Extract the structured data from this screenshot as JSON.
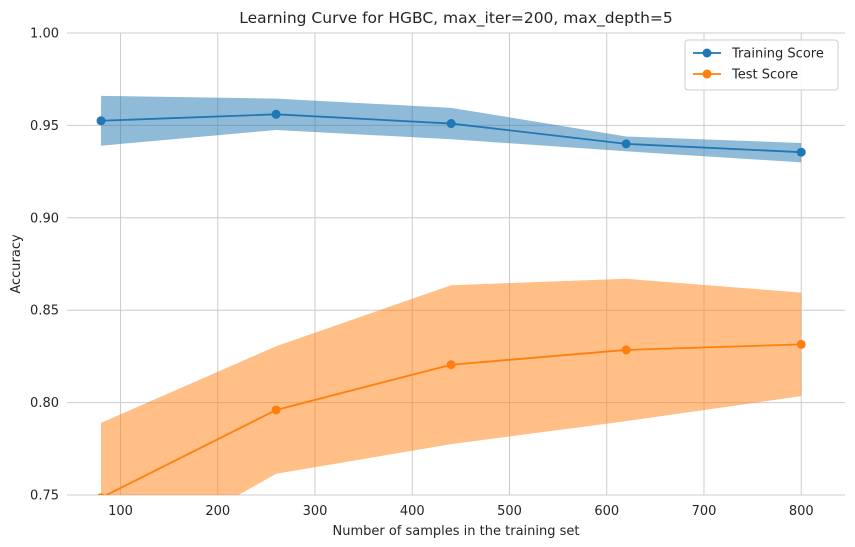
{
  "chart_data": {
    "type": "line",
    "title": "Learning Curve for HGBC, max_iter=200, max_depth=5",
    "xlabel": "Number of samples in the training set",
    "ylabel": "Accuracy",
    "xlim": [
      45,
      845
    ],
    "ylim": [
      0.75,
      1.0
    ],
    "xticks": [
      100,
      200,
      300,
      400,
      500,
      600,
      700,
      800
    ],
    "yticks": [
      0.75,
      0.8,
      0.85,
      0.9,
      0.95,
      1.0
    ],
    "xtick_labels": [
      "100",
      "200",
      "300",
      "400",
      "500",
      "600",
      "700",
      "800"
    ],
    "ytick_labels": [
      "0.75",
      "0.80",
      "0.85",
      "0.90",
      "0.95",
      "1.00"
    ],
    "grid": true,
    "legend_position": "top-right",
    "x": [
      80,
      260,
      440,
      620,
      800
    ],
    "series": [
      {
        "name": "Training Score",
        "color": "#1f77b4",
        "band_color": "#1f77b4",
        "values": [
          0.9525,
          0.956,
          0.951,
          0.94,
          0.9355
        ],
        "upper": [
          0.966,
          0.9645,
          0.9595,
          0.944,
          0.9405
        ],
        "lower": [
          0.939,
          0.9475,
          0.9425,
          0.936,
          0.93
        ]
      },
      {
        "name": "Test Score",
        "color": "#ff7f0e",
        "band_color": "#ff7f0e",
        "values": [
          0.7485,
          0.796,
          0.8205,
          0.8285,
          0.8315
        ],
        "upper": [
          0.789,
          0.8305,
          0.8635,
          0.867,
          0.8595
        ],
        "lower": [
          0.708,
          0.7615,
          0.7775,
          0.79,
          0.8035
        ]
      }
    ]
  }
}
